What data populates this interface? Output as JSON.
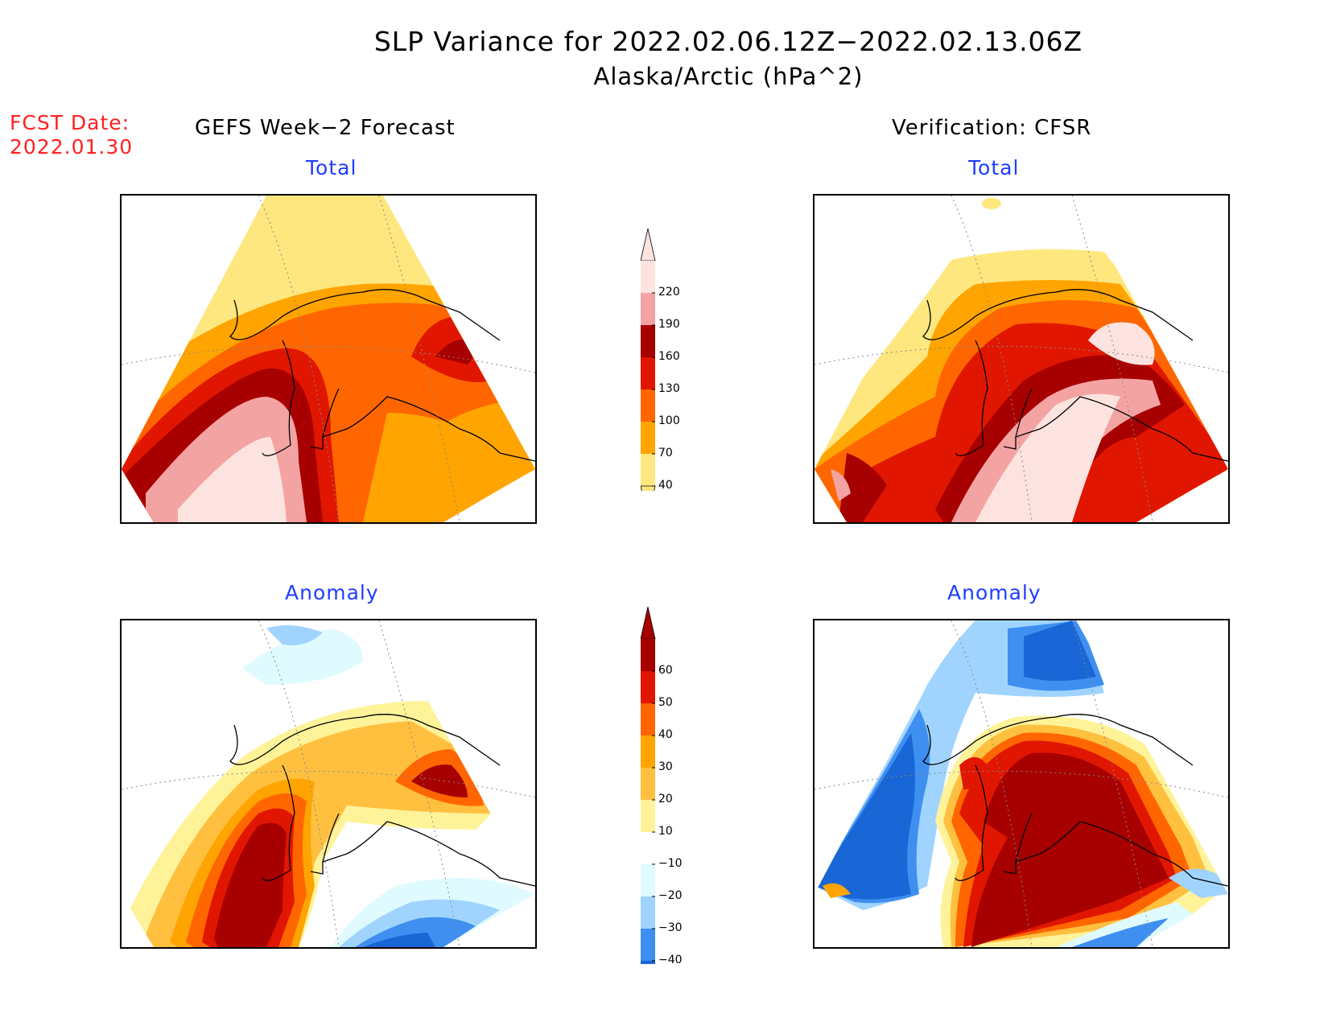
{
  "header": {
    "title": "SLP Variance for 2022.02.06.12Z−2022.02.13.06Z",
    "subtitle": "Alaska/Arctic (hPa^2)",
    "fcst_date_label": "FCST Date:",
    "fcst_date_value": "2022.01.30"
  },
  "columns": {
    "left": "GEFS Week−2 Forecast",
    "right": "Verification: CFSR"
  },
  "panels": {
    "forecast_total": "Total",
    "verification_total": "Total",
    "forecast_anomaly": "Anomaly",
    "verification_anomaly": "Anomaly"
  },
  "colorbars": {
    "total": {
      "levels": [
        "220",
        "190",
        "160",
        "130",
        "100",
        "70",
        "40"
      ],
      "colors": [
        "#fde3e0",
        "#f4a3a3",
        "#a70000",
        "#e11600",
        "#ff6600",
        "#ffa400",
        "#fee77f"
      ]
    },
    "anomaly": {
      "levels": [
        "60",
        "50",
        "40",
        "30",
        "20",
        "10",
        "−10",
        "−20",
        "−30",
        "−40"
      ],
      "colors": [
        "#a70000",
        "#e11600",
        "#ff6600",
        "#ffa400",
        "#ffc040",
        "#fff39a",
        "#ffffff",
        "#e0fbff",
        "#a0d4ff",
        "#3e8ff0",
        "#1966d6"
      ]
    }
  },
  "palette": {
    "title_blue": "#1f3dff",
    "fcst_red": "#ff2020"
  }
}
